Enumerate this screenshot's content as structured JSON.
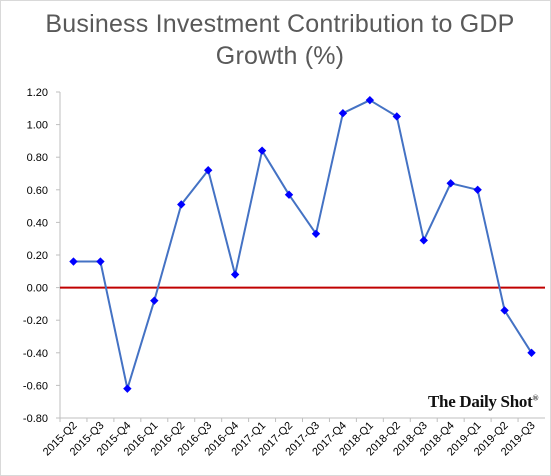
{
  "chart_data": {
    "type": "line",
    "title_line1": "Business Investment Contribution to GDP",
    "title_line2": "Growth (%)",
    "xlabel": "",
    "ylabel": "",
    "categories": [
      "2015-Q2",
      "2015-Q3",
      "2015-Q4",
      "2016-Q1",
      "2016-Q2",
      "2016-Q3",
      "2016-Q4",
      "2017-Q1",
      "2017-Q2",
      "2017-Q3",
      "2017-Q4",
      "2018-Q1",
      "2018-Q2",
      "2018-Q3",
      "2018-Q4",
      "2019-Q1",
      "2019-Q2",
      "2019-Q3"
    ],
    "series": [
      {
        "values": [
          0.16,
          0.16,
          -0.62,
          -0.08,
          0.51,
          0.72,
          0.08,
          0.84,
          0.57,
          0.33,
          1.07,
          1.15,
          1.05,
          0.29,
          0.64,
          0.6,
          -0.14,
          -0.4
        ]
      }
    ],
    "ylim": [
      -0.8,
      1.2
    ],
    "yticks": [
      "-0.80",
      "-0.60",
      "-0.40",
      "-0.20",
      "0.00",
      "0.20",
      "0.40",
      "0.60",
      "0.80",
      "1.00",
      "1.20"
    ],
    "grid": false,
    "legend": "none",
    "line_color": "#4472c4",
    "marker_color": "#0000ff",
    "zero_line_color": "#c00000"
  },
  "watermark": {
    "text": "The Daily Shot",
    "mark": "®"
  }
}
